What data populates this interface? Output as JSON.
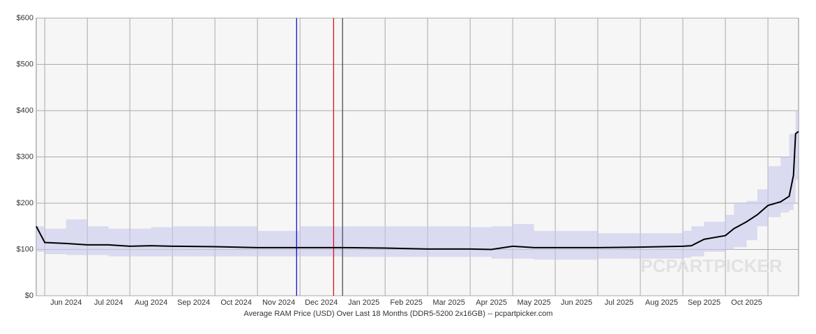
{
  "chart_data": {
    "type": "line",
    "x_label": "Average RAM Price (USD) Over Last 18 Months (DDR5-5200 2x16GB) -- pcpartpicker.com",
    "watermark": "PCPARTPICKER",
    "xlim": [
      -0.2,
      17.72
    ],
    "xgrid": [
      0,
      1,
      2,
      3,
      4,
      5,
      6,
      7,
      8,
      9,
      10,
      11,
      12,
      13,
      14,
      15,
      16,
      17
    ],
    "xticks": [
      {
        "value": 0.5,
        "label": "Jun 2024"
      },
      {
        "value": 1.5,
        "label": "Jul 2024"
      },
      {
        "value": 2.5,
        "label": "Aug 2024"
      },
      {
        "value": 3.5,
        "label": "Sep 2024"
      },
      {
        "value": 4.5,
        "label": "Oct 2024"
      },
      {
        "value": 5.5,
        "label": "Nov 2024"
      },
      {
        "value": 6.5,
        "label": "Dec 2024"
      },
      {
        "value": 7.5,
        "label": "Jan 2025"
      },
      {
        "value": 8.5,
        "label": "Feb 2025"
      },
      {
        "value": 9.5,
        "label": "Mar 2025"
      },
      {
        "value": 10.5,
        "label": "Apr 2025"
      },
      {
        "value": 11.5,
        "label": "May 2025"
      },
      {
        "value": 12.5,
        "label": "Jun 2025"
      },
      {
        "value": 13.5,
        "label": "Jul 2025"
      },
      {
        "value": 14.5,
        "label": "Aug 2025"
      },
      {
        "value": 15.5,
        "label": "Sep 2025"
      },
      {
        "value": 16.5,
        "label": "Oct 2025"
      }
    ],
    "ylim": [
      0,
      600
    ],
    "yticks": [
      {
        "value": 0,
        "label": "$0"
      },
      {
        "value": 100,
        "label": "$100"
      },
      {
        "value": 200,
        "label": "$200"
      },
      {
        "value": 300,
        "label": "$300"
      },
      {
        "value": 400,
        "label": "$400"
      },
      {
        "value": 500,
        "label": "$500"
      },
      {
        "value": 600,
        "label": "$600"
      }
    ],
    "grid": true,
    "markers": [
      {
        "x": 5.92,
        "color": "#0000cc"
      },
      {
        "x": 6.79,
        "color": "#dd0000"
      },
      {
        "x": 7.0,
        "color": "#444444"
      }
    ],
    "x": [
      -0.2,
      0,
      0.5,
      1,
      1.5,
      2,
      2.5,
      3,
      4,
      5,
      6,
      7,
      8,
      9,
      10,
      10.5,
      11,
      11.5,
      12,
      13,
      14,
      15,
      15.2,
      15.5,
      16,
      16.2,
      16.5,
      16.75,
      17,
      17.3,
      17.5,
      17.6,
      17.65,
      17.72
    ],
    "color": "#000000",
    "values": [
      150,
      115,
      113,
      110,
      110,
      107,
      108,
      107,
      106,
      104,
      104,
      104,
      103,
      101,
      101,
      100,
      107,
      104,
      104,
      104,
      105,
      107,
      108,
      122,
      130,
      145,
      160,
      175,
      195,
      203,
      215,
      260,
      350,
      355
    ],
    "band": {
      "color": "#c8c8ec",
      "low": [
        95,
        90,
        88,
        88,
        85,
        85,
        85,
        85,
        85,
        85,
        85,
        84,
        84,
        84,
        84,
        80,
        80,
        78,
        78,
        80,
        80,
        82,
        85,
        95,
        100,
        105,
        120,
        150,
        170,
        180,
        185,
        200,
        250,
        250
      ],
      "high": [
        150,
        145,
        165,
        150,
        145,
        145,
        148,
        150,
        150,
        140,
        150,
        150,
        150,
        150,
        148,
        150,
        155,
        140,
        140,
        135,
        135,
        140,
        150,
        160,
        175,
        200,
        205,
        230,
        280,
        300,
        350,
        350,
        400,
        425
      ]
    }
  }
}
